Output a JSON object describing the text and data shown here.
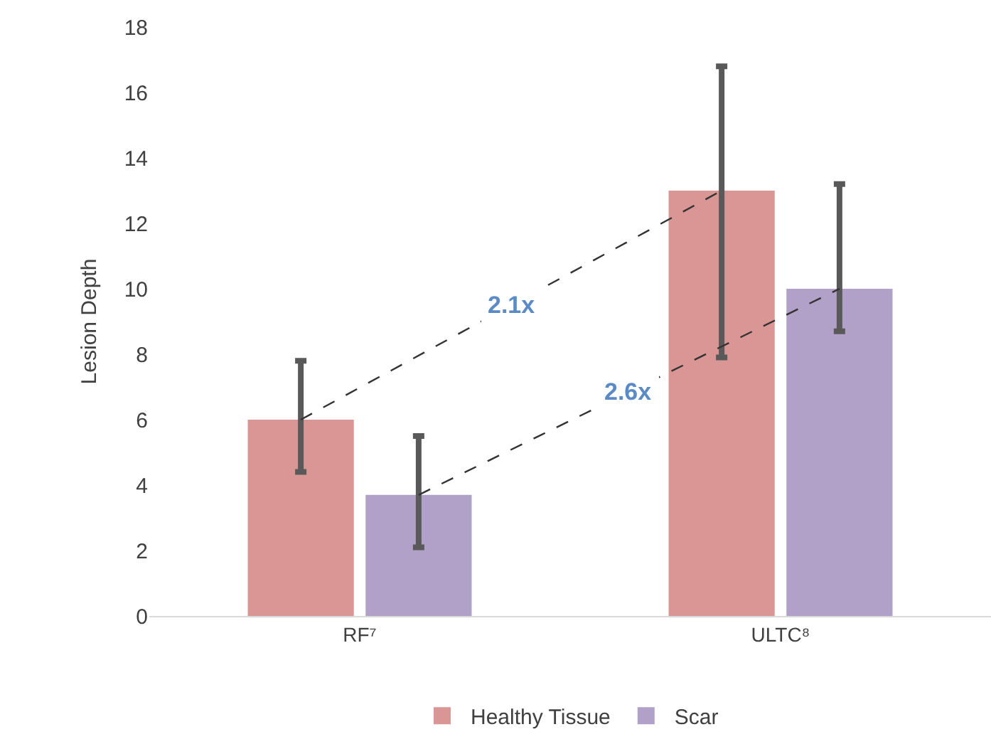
{
  "chart_data": {
    "type": "bar",
    "ylabel": "Lesion Depth",
    "categories": [
      "RF⁷",
      "ULTC⁸"
    ],
    "series": [
      {
        "name": "Healthy Tissue",
        "color": "#da9694",
        "values": [
          6.0,
          13.0
        ],
        "errors": [
          [
            4.4,
            7.8
          ],
          [
            7.9,
            16.8
          ]
        ]
      },
      {
        "name": "Scar",
        "color": "#b1a0c7",
        "values": [
          3.7,
          10.0
        ],
        "errors": [
          [
            2.1,
            5.5
          ],
          [
            8.7,
            13.2
          ]
        ]
      }
    ],
    "annotations": [
      "2.1x",
      "2.6x"
    ],
    "ylim": [
      0,
      18
    ],
    "yticks": [
      0,
      2,
      4,
      6,
      8,
      10,
      12,
      14,
      16,
      18
    ],
    "legend": "bottom"
  }
}
